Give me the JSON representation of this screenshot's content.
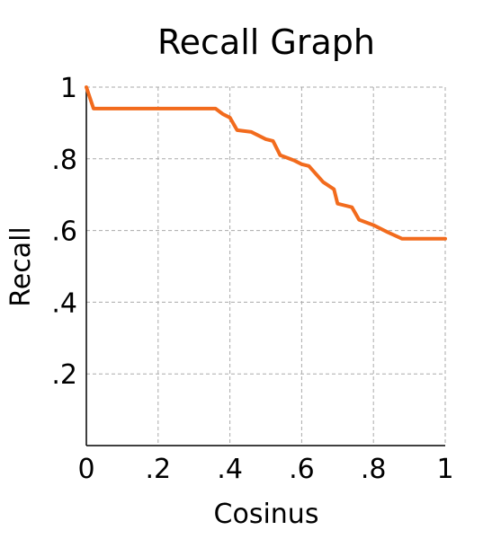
{
  "chart_data": {
    "type": "line",
    "title": "Recall Graph",
    "xlabel": "Cosinus",
    "ylabel": "Recall",
    "xlim": [
      0,
      1
    ],
    "ylim": [
      0,
      1
    ],
    "grid": true,
    "x_ticks": [
      {
        "value": 0,
        "label": "0"
      },
      {
        "value": 0.2,
        "label": ".2"
      },
      {
        "value": 0.4,
        "label": ".4"
      },
      {
        "value": 0.6,
        "label": ".6"
      },
      {
        "value": 0.8,
        "label": ".8"
      },
      {
        "value": 1,
        "label": "1"
      }
    ],
    "y_ticks": [
      {
        "value": 0.2,
        "label": ".2"
      },
      {
        "value": 0.4,
        "label": ".4"
      },
      {
        "value": 0.6,
        "label": ".6"
      },
      {
        "value": 0.8,
        "label": ".8"
      },
      {
        "value": 1,
        "label": "1"
      }
    ],
    "series": [
      {
        "color": "#f26b1d",
        "x": [
          0,
          0.02,
          0.36,
          0.38,
          0.4,
          0.42,
          0.46,
          0.5,
          0.52,
          0.54,
          0.58,
          0.6,
          0.62,
          0.66,
          0.69,
          0.7,
          0.74,
          0.76,
          0.8,
          0.84,
          0.88,
          1.0
        ],
        "y": [
          1.0,
          0.94,
          0.94,
          0.925,
          0.915,
          0.88,
          0.875,
          0.855,
          0.85,
          0.81,
          0.795,
          0.785,
          0.78,
          0.735,
          0.715,
          0.675,
          0.665,
          0.63,
          0.615,
          0.595,
          0.577,
          0.577
        ]
      }
    ]
  }
}
